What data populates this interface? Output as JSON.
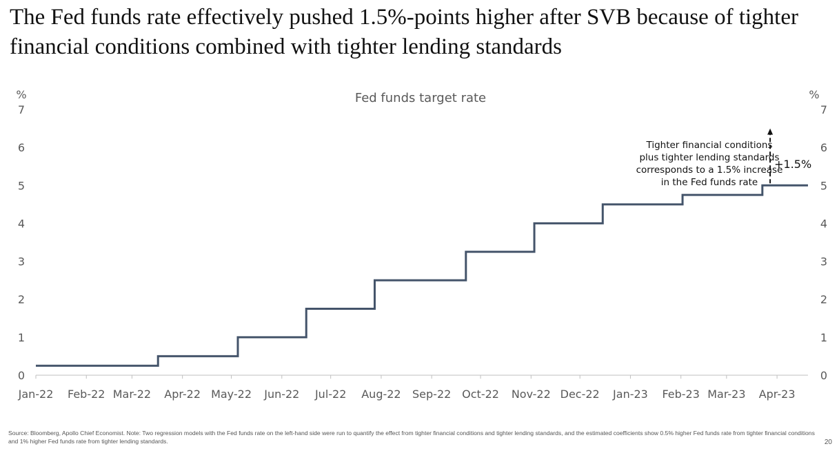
{
  "headline": "The Fed funds rate effectively pushed 1.5%-points higher after SVB because of tighter financial conditions combined with tighter lending standards",
  "footnote": "Source: Bloomberg, Apollo Chief Economist. Note: Two regression models with the Fed funds rate on the left-hand side were run to quantify the effect from tighter financial conditions and tighter lending standards, and the estimated coefficients show 0.5% higher Fed funds rate from tighter financial conditions and 1% higher Fed funds rate from tighter lending standards.",
  "page_number": "20",
  "chart_data": {
    "type": "line",
    "title": "Fed funds target rate",
    "left_unit": "%",
    "right_unit": "%",
    "ylim": [
      0,
      7
    ],
    "yticks": [
      0,
      1,
      2,
      3,
      4,
      5,
      6,
      7
    ],
    "xlim": [
      "2022-01-01",
      "2023-04-20"
    ],
    "x_tick_dates": [
      "2022-01-01",
      "2022-02-01",
      "2022-03-01",
      "2022-04-01",
      "2022-05-01",
      "2022-06-01",
      "2022-07-01",
      "2022-08-01",
      "2022-09-01",
      "2022-10-01",
      "2022-11-01",
      "2022-12-01",
      "2023-01-01",
      "2023-02-01",
      "2023-03-01",
      "2023-04-01"
    ],
    "x_tick_labels": [
      "Jan-22",
      "Feb-22",
      "Mar-22",
      "Apr-22",
      "May-22",
      "Jun-22",
      "Jul-22",
      "Aug-22",
      "Sep-22",
      "Oct-22",
      "Nov-22",
      "Dec-22",
      "Jan-23",
      "Feb-23",
      "Mar-23",
      "Apr-23"
    ],
    "grid": false,
    "color": "#44546a",
    "series": [
      {
        "x": [
          "2022-01-01",
          "2022-03-17",
          "2022-05-05",
          "2022-06-16",
          "2022-07-28",
          "2022-09-22",
          "2022-11-03",
          "2022-12-15",
          "2023-02-02",
          "2023-03-23",
          "2023-04-20"
        ],
        "y": [
          0.25,
          0.5,
          1.0,
          1.75,
          2.5,
          3.25,
          4.0,
          4.5,
          4.75,
          5.0,
          5.0
        ]
      }
    ],
    "annotation": {
      "lines": [
        "Tighter financial conditions",
        "plus tighter lending standards",
        "corresponds to a 1.5% increase",
        "in the Fed funds rate"
      ],
      "label": "+1.5%",
      "arrow_from": 5.0,
      "arrow_to": 6.5,
      "arrow_date": "2023-04-01"
    }
  }
}
